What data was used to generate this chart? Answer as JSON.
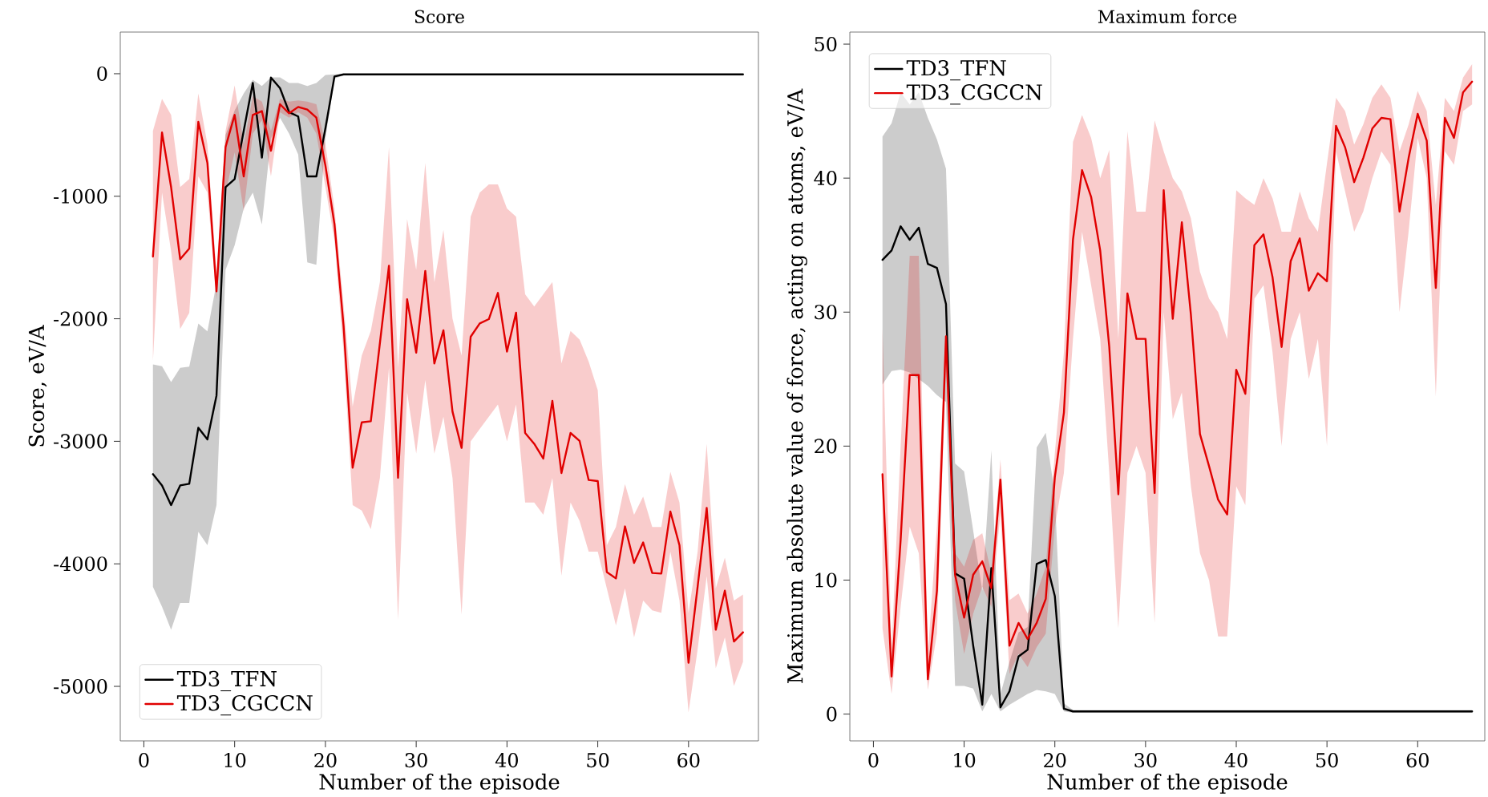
{
  "chart_data": [
    {
      "type": "line",
      "title": "Score",
      "xlabel": "Number of the episode",
      "ylabel": "Score, eV/A",
      "legend": "bottom left",
      "xlim": [
        -2.6,
        67.7
      ],
      "ylim": [
        -5445,
        340
      ],
      "xticks": [
        0,
        10,
        20,
        30,
        40,
        50,
        60
      ],
      "yticks": [
        -5000,
        -4000,
        -3000,
        -2000,
        -1000,
        0
      ],
      "x": [
        1,
        2,
        3,
        4,
        5,
        6,
        7,
        8,
        9,
        10,
        11,
        12,
        13,
        14,
        15,
        16,
        17,
        18,
        19,
        20,
        21,
        22,
        23,
        24,
        25,
        26,
        27,
        28,
        29,
        30,
        31,
        32,
        33,
        34,
        35,
        36,
        37,
        38,
        39,
        40,
        41,
        42,
        43,
        44,
        45,
        46,
        47,
        48,
        49,
        50,
        51,
        52,
        53,
        54,
        55,
        56,
        57,
        58,
        59,
        60,
        61,
        62,
        63,
        64,
        65,
        66
      ],
      "series": [
        {
          "name": "TD3_TFN",
          "color": "#000000",
          "values": [
            -3268,
            -3360,
            -3521,
            -3360,
            -3347,
            -2889,
            -2984,
            -2627,
            -925,
            -860,
            -467,
            -75,
            -685,
            -31,
            -118,
            -314,
            -349,
            -838,
            -838,
            -445,
            -22,
            -5,
            -5,
            -5,
            -5,
            -5,
            -5,
            -5,
            -5,
            -5,
            -5,
            -5,
            -5,
            -5,
            -5,
            -5,
            -5,
            -5,
            -5,
            -5,
            -5,
            -5,
            -5,
            -5,
            -5,
            -5,
            -5,
            -5,
            -5,
            -5,
            -5,
            -5,
            -5,
            -5,
            -5,
            -5,
            -5,
            -5,
            -5,
            -5,
            -5,
            -5,
            -5,
            -5,
            -5,
            -5
          ],
          "lower": [
            -4188,
            -4350,
            -4538,
            -4319,
            -4319,
            -3739,
            -3848,
            -3521,
            -1600,
            -1400,
            -1100,
            -970,
            -1230,
            -530,
            -360,
            -490,
            -660,
            -1540,
            -1560,
            -530,
            -40,
            -15,
            -15,
            -15,
            -15,
            -15,
            -15,
            -15,
            -15,
            -15,
            -15,
            -15,
            -15,
            -15,
            -15,
            -15,
            -15,
            -15,
            -15,
            -15,
            -15,
            -15,
            -15,
            -15,
            -15,
            -15,
            -15,
            -15,
            -15,
            -15,
            -15,
            -15,
            -15,
            -15,
            -15,
            -15,
            -15,
            -15,
            -15,
            -15,
            -15,
            -15,
            -15,
            -15,
            -15,
            -15
          ],
          "upper": [
            -2373,
            -2387,
            -2517,
            -2400,
            -2391,
            -2038,
            -2103,
            -1710,
            -500,
            -300,
            -160,
            -50,
            -100,
            -30,
            -30,
            -75,
            -75,
            -100,
            -75,
            -10,
            -5,
            0,
            0,
            0,
            0,
            0,
            0,
            0,
            0,
            0,
            0,
            0,
            0,
            0,
            0,
            0,
            0,
            0,
            0,
            0,
            0,
            0,
            0,
            0,
            0,
            0,
            0,
            0,
            0,
            0,
            0,
            0,
            0,
            0,
            0,
            0,
            0,
            0,
            0,
            0,
            0,
            0,
            0,
            0,
            0,
            0
          ]
        },
        {
          "name": "TD3_CGCCN",
          "color": "#e00000",
          "values": [
            -1492,
            -480,
            -925,
            -1514,
            -1427,
            -393,
            -729,
            -1776,
            -598,
            -336,
            -838,
            -336,
            -305,
            -628,
            -249,
            -323,
            -271,
            -292,
            -358,
            -750,
            -1230,
            -2059,
            -3216,
            -2845,
            -2836,
            -2200,
            -1567,
            -3298,
            -1841,
            -2277,
            -1610,
            -2365,
            -2094,
            -2758,
            -3054,
            -2147,
            -2038,
            -2003,
            -1789,
            -2268,
            -1950,
            -2932,
            -3020,
            -3141,
            -2670,
            -3259,
            -2932,
            -2997,
            -3316,
            -3325,
            -4067,
            -4119,
            -3695,
            -3992,
            -3826,
            -4075,
            -4080,
            -3573,
            -3848,
            -4808,
            -4188,
            -3543,
            -4538,
            -4219,
            -4634,
            -4559
          ],
          "lower": [
            -2343,
            -970,
            -1449,
            -2083,
            -1952,
            -838,
            -970,
            -1841,
            -970,
            -642,
            -1122,
            -489,
            -380,
            -838,
            -314,
            -358,
            -314,
            -358,
            -489,
            -925,
            -1362,
            -2280,
            -3521,
            -3565,
            -3717,
            -3300,
            -2400,
            -4459,
            -2600,
            -3100,
            -2500,
            -3100,
            -2800,
            -3300,
            -4415,
            -3000,
            -2900,
            -2800,
            -2700,
            -3000,
            -2700,
            -3500,
            -3500,
            -3600,
            -3300,
            -4097,
            -3500,
            -3650,
            -3900,
            -3900,
            -4201,
            -4503,
            -4200,
            -4600,
            -4300,
            -4380,
            -4400,
            -3900,
            -4300,
            -5213,
            -4700,
            -4100,
            -4852,
            -4600,
            -4996,
            -4800
          ],
          "upper": [
            -467,
            -205,
            -336,
            -925,
            -860,
            -160,
            -576,
            -1624,
            -467,
            -96,
            -576,
            -183,
            -227,
            -467,
            -205,
            -227,
            -218,
            -227,
            -249,
            -576,
            -1100,
            -1886,
            -2716,
            -2300,
            -2100,
            -1700,
            -598,
            -2400,
            -1187,
            -1600,
            -729,
            -1700,
            -1275,
            -2000,
            -2300,
            -1166,
            -970,
            -904,
            -904,
            -1100,
            -1166,
            -1800,
            -1900,
            -1800,
            -1700,
            -2365,
            -2100,
            -2169,
            -2350,
            -2583,
            -3848,
            -3700,
            -3350,
            -3600,
            -3450,
            -3700,
            -3700,
            -3250,
            -3500,
            -4400,
            -3900,
            -3020,
            -4200,
            -3950,
            -4300,
            -4250
          ]
        }
      ]
    },
    {
      "type": "line",
      "title": "Maximum force",
      "xlabel": "Number of the episode",
      "ylabel": "Maximum absolute value of force, acting on atoms, eV/A",
      "legend": "top left",
      "xlim": [
        -2.6,
        67.4
      ],
      "ylim": [
        -2.0,
        50.9
      ],
      "xticks": [
        0,
        10,
        20,
        30,
        40,
        50,
        60
      ],
      "yticks": [
        0,
        10,
        20,
        30,
        40,
        50
      ],
      "x": [
        1,
        2,
        3,
        4,
        5,
        6,
        7,
        8,
        9,
        10,
        11,
        12,
        13,
        14,
        15,
        16,
        17,
        18,
        19,
        20,
        21,
        22,
        23,
        24,
        25,
        26,
        27,
        28,
        29,
        30,
        31,
        32,
        33,
        34,
        35,
        36,
        37,
        38,
        39,
        40,
        41,
        42,
        43,
        44,
        45,
        46,
        47,
        48,
        49,
        50,
        51,
        52,
        53,
        54,
        55,
        56,
        57,
        58,
        59,
        60,
        61,
        62,
        63,
        64,
        65,
        66
      ],
      "series": [
        {
          "name": "TD3_TFN",
          "color": "#000000",
          "values": [
            33.9,
            34.6,
            36.4,
            35.4,
            36.3,
            33.6,
            33.3,
            30.6,
            10.5,
            10.1,
            5.1,
            0.7,
            10.9,
            0.5,
            1.7,
            4.3,
            4.8,
            11.2,
            11.5,
            8.8,
            0.4,
            0.2,
            0.2,
            0.2,
            0.2,
            0.2,
            0.2,
            0.2,
            0.2,
            0.2,
            0.2,
            0.2,
            0.2,
            0.2,
            0.2,
            0.2,
            0.2,
            0.2,
            0.2,
            0.2,
            0.2,
            0.2,
            0.2,
            0.2,
            0.2,
            0.2,
            0.2,
            0.2,
            0.2,
            0.2,
            0.2,
            0.2,
            0.2,
            0.2,
            0.2,
            0.2,
            0.2,
            0.2,
            0.2,
            0.2,
            0.2,
            0.2,
            0.2,
            0.2,
            0.2,
            0.2
          ],
          "lower": [
            24.6,
            25.6,
            25.7,
            25.5,
            25.0,
            24.5,
            23.8,
            23.3,
            2.1,
            2.1,
            1.9,
            0.2,
            1.5,
            0.2,
            0.7,
            1.1,
            1.5,
            1.8,
            1.7,
            1.5,
            0.2,
            0.1,
            0.1,
            0.1,
            0.1,
            0.1,
            0.1,
            0.1,
            0.1,
            0.1,
            0.1,
            0.1,
            0.1,
            0.1,
            0.1,
            0.1,
            0.1,
            0.1,
            0.1,
            0.1,
            0.1,
            0.1,
            0.1,
            0.1,
            0.1,
            0.1,
            0.1,
            0.1,
            0.1,
            0.1,
            0.1,
            0.1,
            0.1,
            0.1,
            0.1,
            0.1,
            0.1,
            0.1,
            0.1,
            0.1,
            0.1,
            0.1,
            0.1,
            0.1,
            0.1,
            0.1
          ],
          "upper": [
            43.1,
            44.1,
            46.4,
            45.5,
            46.4,
            44.5,
            42.9,
            40.7,
            18.7,
            18.1,
            13.7,
            9.2,
            19.7,
            1.5,
            3.9,
            6.1,
            6.5,
            19.9,
            21.0,
            16.4,
            0.8,
            0.3,
            0.3,
            0.3,
            0.3,
            0.3,
            0.3,
            0.3,
            0.3,
            0.3,
            0.3,
            0.3,
            0.3,
            0.3,
            0.3,
            0.3,
            0.3,
            0.3,
            0.3,
            0.3,
            0.3,
            0.3,
            0.3,
            0.3,
            0.3,
            0.3,
            0.3,
            0.3,
            0.3,
            0.3,
            0.3,
            0.3,
            0.3,
            0.3,
            0.3,
            0.3,
            0.3,
            0.3,
            0.3,
            0.3,
            0.3,
            0.3,
            0.3,
            0.3,
            0.3,
            0.3
          ]
        },
        {
          "name": "TD3_CGCCN",
          "color": "#e00000",
          "values": [
            17.9,
            2.8,
            13,
            25.3,
            25.3,
            2.6,
            9.2,
            28.2,
            10.4,
            7.2,
            10.4,
            11.4,
            9.4,
            17.5,
            5.1,
            6.8,
            5.6,
            6.8,
            8.6,
            17.7,
            22.5,
            35.4,
            40.6,
            38.6,
            34.6,
            27.4,
            16.4,
            31.4,
            28.0,
            28.0,
            16.5,
            39.1,
            29.5,
            36.7,
            29.8,
            20.9,
            18.5,
            16.0,
            14.9,
            25.7,
            23.9,
            35.0,
            35.8,
            32.6,
            27.4,
            33.8,
            35.5,
            31.6,
            32.9,
            32.3,
            43.9,
            42.3,
            39.7,
            41.5,
            43.7,
            44.5,
            44.4,
            37.5,
            41.5,
            44.8,
            42.8,
            31.8,
            44.5,
            43.0,
            46.4,
            47.2
          ],
          "lower": [
            6.4,
            1.5,
            8,
            14,
            12,
            1.8,
            6,
            26,
            8.5,
            4.5,
            7.5,
            9.5,
            8,
            15,
            3,
            4.5,
            3.5,
            5,
            6,
            14,
            18,
            28,
            36,
            32,
            28,
            18,
            6.4,
            18,
            20,
            18,
            6.8,
            30,
            22,
            24,
            17,
            12,
            10,
            5.8,
            5.8,
            17,
            15.6,
            31,
            32,
            27,
            20,
            28,
            30,
            25,
            28,
            20,
            42,
            39,
            36,
            37.5,
            40,
            42,
            41,
            30,
            36,
            43,
            40,
            23.7,
            42,
            41,
            45,
            45.5
          ],
          "upper": [
            28.8,
            4.8,
            20,
            34.2,
            34.2,
            4.5,
            14,
            29,
            12,
            11,
            13,
            13.5,
            10.5,
            19,
            8.5,
            9,
            7.5,
            9,
            11,
            19.5,
            27,
            42.7,
            44.7,
            43,
            40,
            42.1,
            28,
            43.5,
            37.5,
            37.5,
            44.3,
            42,
            40,
            39,
            37,
            33,
            31,
            30,
            28,
            39.1,
            38.5,
            38,
            40,
            38.5,
            36,
            36,
            39,
            37,
            36,
            41.1,
            46,
            45,
            42.5,
            44,
            46,
            47,
            46,
            42,
            44,
            46.5,
            45,
            38,
            46,
            45,
            47.5,
            48.5
          ]
        }
      ]
    }
  ]
}
